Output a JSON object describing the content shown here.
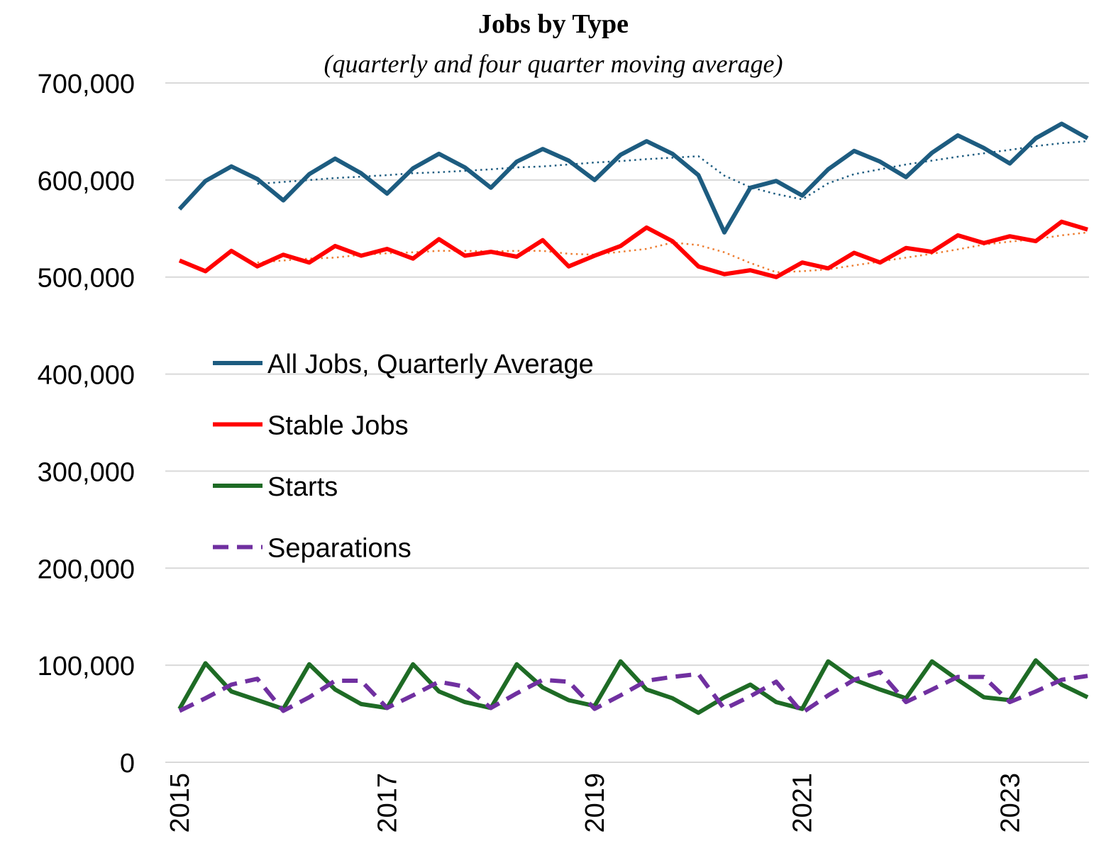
{
  "chart_data": {
    "type": "line",
    "title": "Jobs by Type",
    "subtitle": "(quarterly and four quarter moving average)",
    "categories": [
      "2015",
      null,
      null,
      null,
      null,
      null,
      null,
      null,
      "2017",
      null,
      null,
      null,
      null,
      null,
      null,
      null,
      "2019",
      null,
      null,
      null,
      null,
      null,
      null,
      null,
      "2021",
      null,
      null,
      null,
      null,
      null,
      null,
      null,
      "2023",
      null,
      null,
      null
    ],
    "series": [
      {
        "name": "All Jobs, Quarterly Average",
        "color": "#1d5c80",
        "style": "solid",
        "values": [
          570000,
          599000,
          614000,
          601000,
          579000,
          606000,
          622000,
          607000,
          586000,
          612000,
          627000,
          613000,
          592000,
          619000,
          632000,
          620000,
          600000,
          626000,
          640000,
          627000,
          605000,
          546000,
          592000,
          599000,
          584000,
          611000,
          630000,
          619000,
          603000,
          628000,
          646000,
          633000,
          617000,
          643000,
          658000,
          643000
        ]
      },
      {
        "name": "Stable Jobs",
        "color": "#ff0000",
        "style": "solid",
        "values": [
          517000,
          506000,
          527000,
          511000,
          523000,
          515000,
          532000,
          522000,
          529000,
          519000,
          539000,
          522000,
          526000,
          521000,
          538000,
          511000,
          522000,
          532000,
          551000,
          537000,
          511000,
          503000,
          507000,
          500000,
          515000,
          509000,
          525000,
          515000,
          530000,
          526000,
          543000,
          535000,
          542000,
          537000,
          557000,
          549000
        ]
      },
      {
        "name": "Starts",
        "color": "#1e6b25",
        "style": "solid",
        "values": [
          55000,
          102000,
          73000,
          64000,
          55000,
          101000,
          75000,
          60000,
          56000,
          101000,
          73000,
          62000,
          56000,
          101000,
          77000,
          64000,
          58000,
          104000,
          75000,
          66000,
          51000,
          67000,
          80000,
          62000,
          55000,
          104000,
          85000,
          75000,
          66000,
          104000,
          85000,
          67000,
          64000,
          105000,
          80000,
          67000
        ]
      },
      {
        "name": "Separations",
        "color": "#7030a0",
        "style": "dashed",
        "values": [
          53000,
          66000,
          80000,
          86000,
          53000,
          67000,
          84000,
          84000,
          56000,
          69000,
          83000,
          78000,
          56000,
          71000,
          85000,
          83000,
          55000,
          69000,
          84000,
          88000,
          91000,
          55000,
          68000,
          83000,
          51000,
          69000,
          85000,
          93000,
          62000,
          75000,
          88000,
          88000,
          62000,
          73000,
          85000,
          89000
        ]
      },
      {
        "color": "#1d5c80",
        "style": "dotted",
        "values": [
          null,
          null,
          null,
          596000,
          598000,
          600000,
          602000,
          603500,
          605000,
          607000,
          608000,
          609500,
          611000,
          613000,
          614000,
          616000,
          618000,
          619500,
          621500,
          623000,
          624500,
          604500,
          592500,
          585500,
          580000,
          596500,
          606000,
          611000,
          616000,
          620000,
          624000,
          627500,
          631000,
          635000,
          638000,
          640000
        ]
      },
      {
        "color": "#ed7d31",
        "style": "dotted",
        "values": [
          null,
          null,
          null,
          515000,
          517000,
          519000,
          520000,
          523000,
          524500,
          525500,
          527000,
          527000,
          526500,
          527000,
          527000,
          524000,
          523000,
          526000,
          529000,
          535500,
          533000,
          525500,
          514500,
          505000,
          506000,
          508000,
          512000,
          516000,
          520000,
          524000,
          528500,
          533500,
          536500,
          539000,
          543000,
          546000
        ]
      }
    ],
    "ylim": [
      0,
      700000
    ],
    "yticks": [
      0,
      {
        "value": 100000,
        "label": "100,000"
      },
      {
        "value": 200000,
        "label": "200,000"
      },
      {
        "value": 300000,
        "label": "300,000"
      },
      {
        "value": 400000,
        "label": "400,000"
      },
      {
        "value": 500000,
        "label": "500,000"
      },
      {
        "value": 600000,
        "label": "600,000"
      },
      {
        "value": 700000,
        "label": "700,000"
      }
    ],
    "grid": true,
    "legend": "left"
  }
}
